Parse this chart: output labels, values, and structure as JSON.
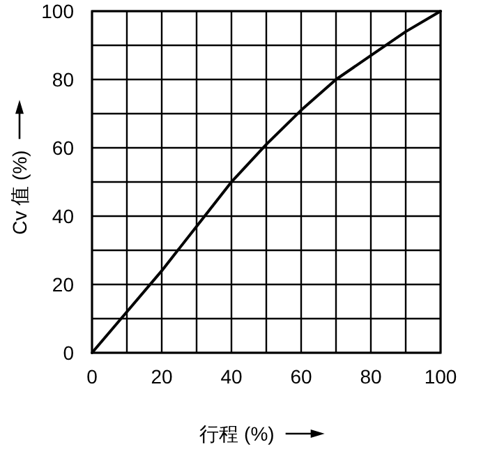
{
  "chart_data": {
    "type": "line",
    "xlabel": "行程 (%)",
    "ylabel": "Cv 值 (%)",
    "x": [
      0,
      10,
      20,
      30,
      40,
      50,
      60,
      70,
      80,
      90,
      100
    ],
    "series": [
      {
        "color": "#000000",
        "values": [
          0,
          12,
          24,
          37,
          50,
          61,
          71,
          80,
          87,
          94,
          100
        ]
      }
    ],
    "xlim": [
      0,
      100
    ],
    "ylim": [
      0,
      100
    ],
    "xticks": [
      0,
      {
        "value": 10,
        "label": null
      },
      20,
      {
        "value": 30,
        "label": null
      },
      40,
      {
        "value": 50,
        "label": null
      },
      60,
      {
        "value": 70,
        "label": null
      },
      80,
      {
        "value": 90,
        "label": null
      },
      100
    ],
    "yticks": [
      0,
      {
        "value": 10,
        "label": null
      },
      20,
      {
        "value": 30,
        "label": null
      },
      40,
      {
        "value": 50,
        "label": null
      },
      60,
      {
        "value": 70,
        "label": null
      },
      80,
      {
        "value": 90,
        "label": null
      },
      100
    ],
    "grid": true
  }
}
